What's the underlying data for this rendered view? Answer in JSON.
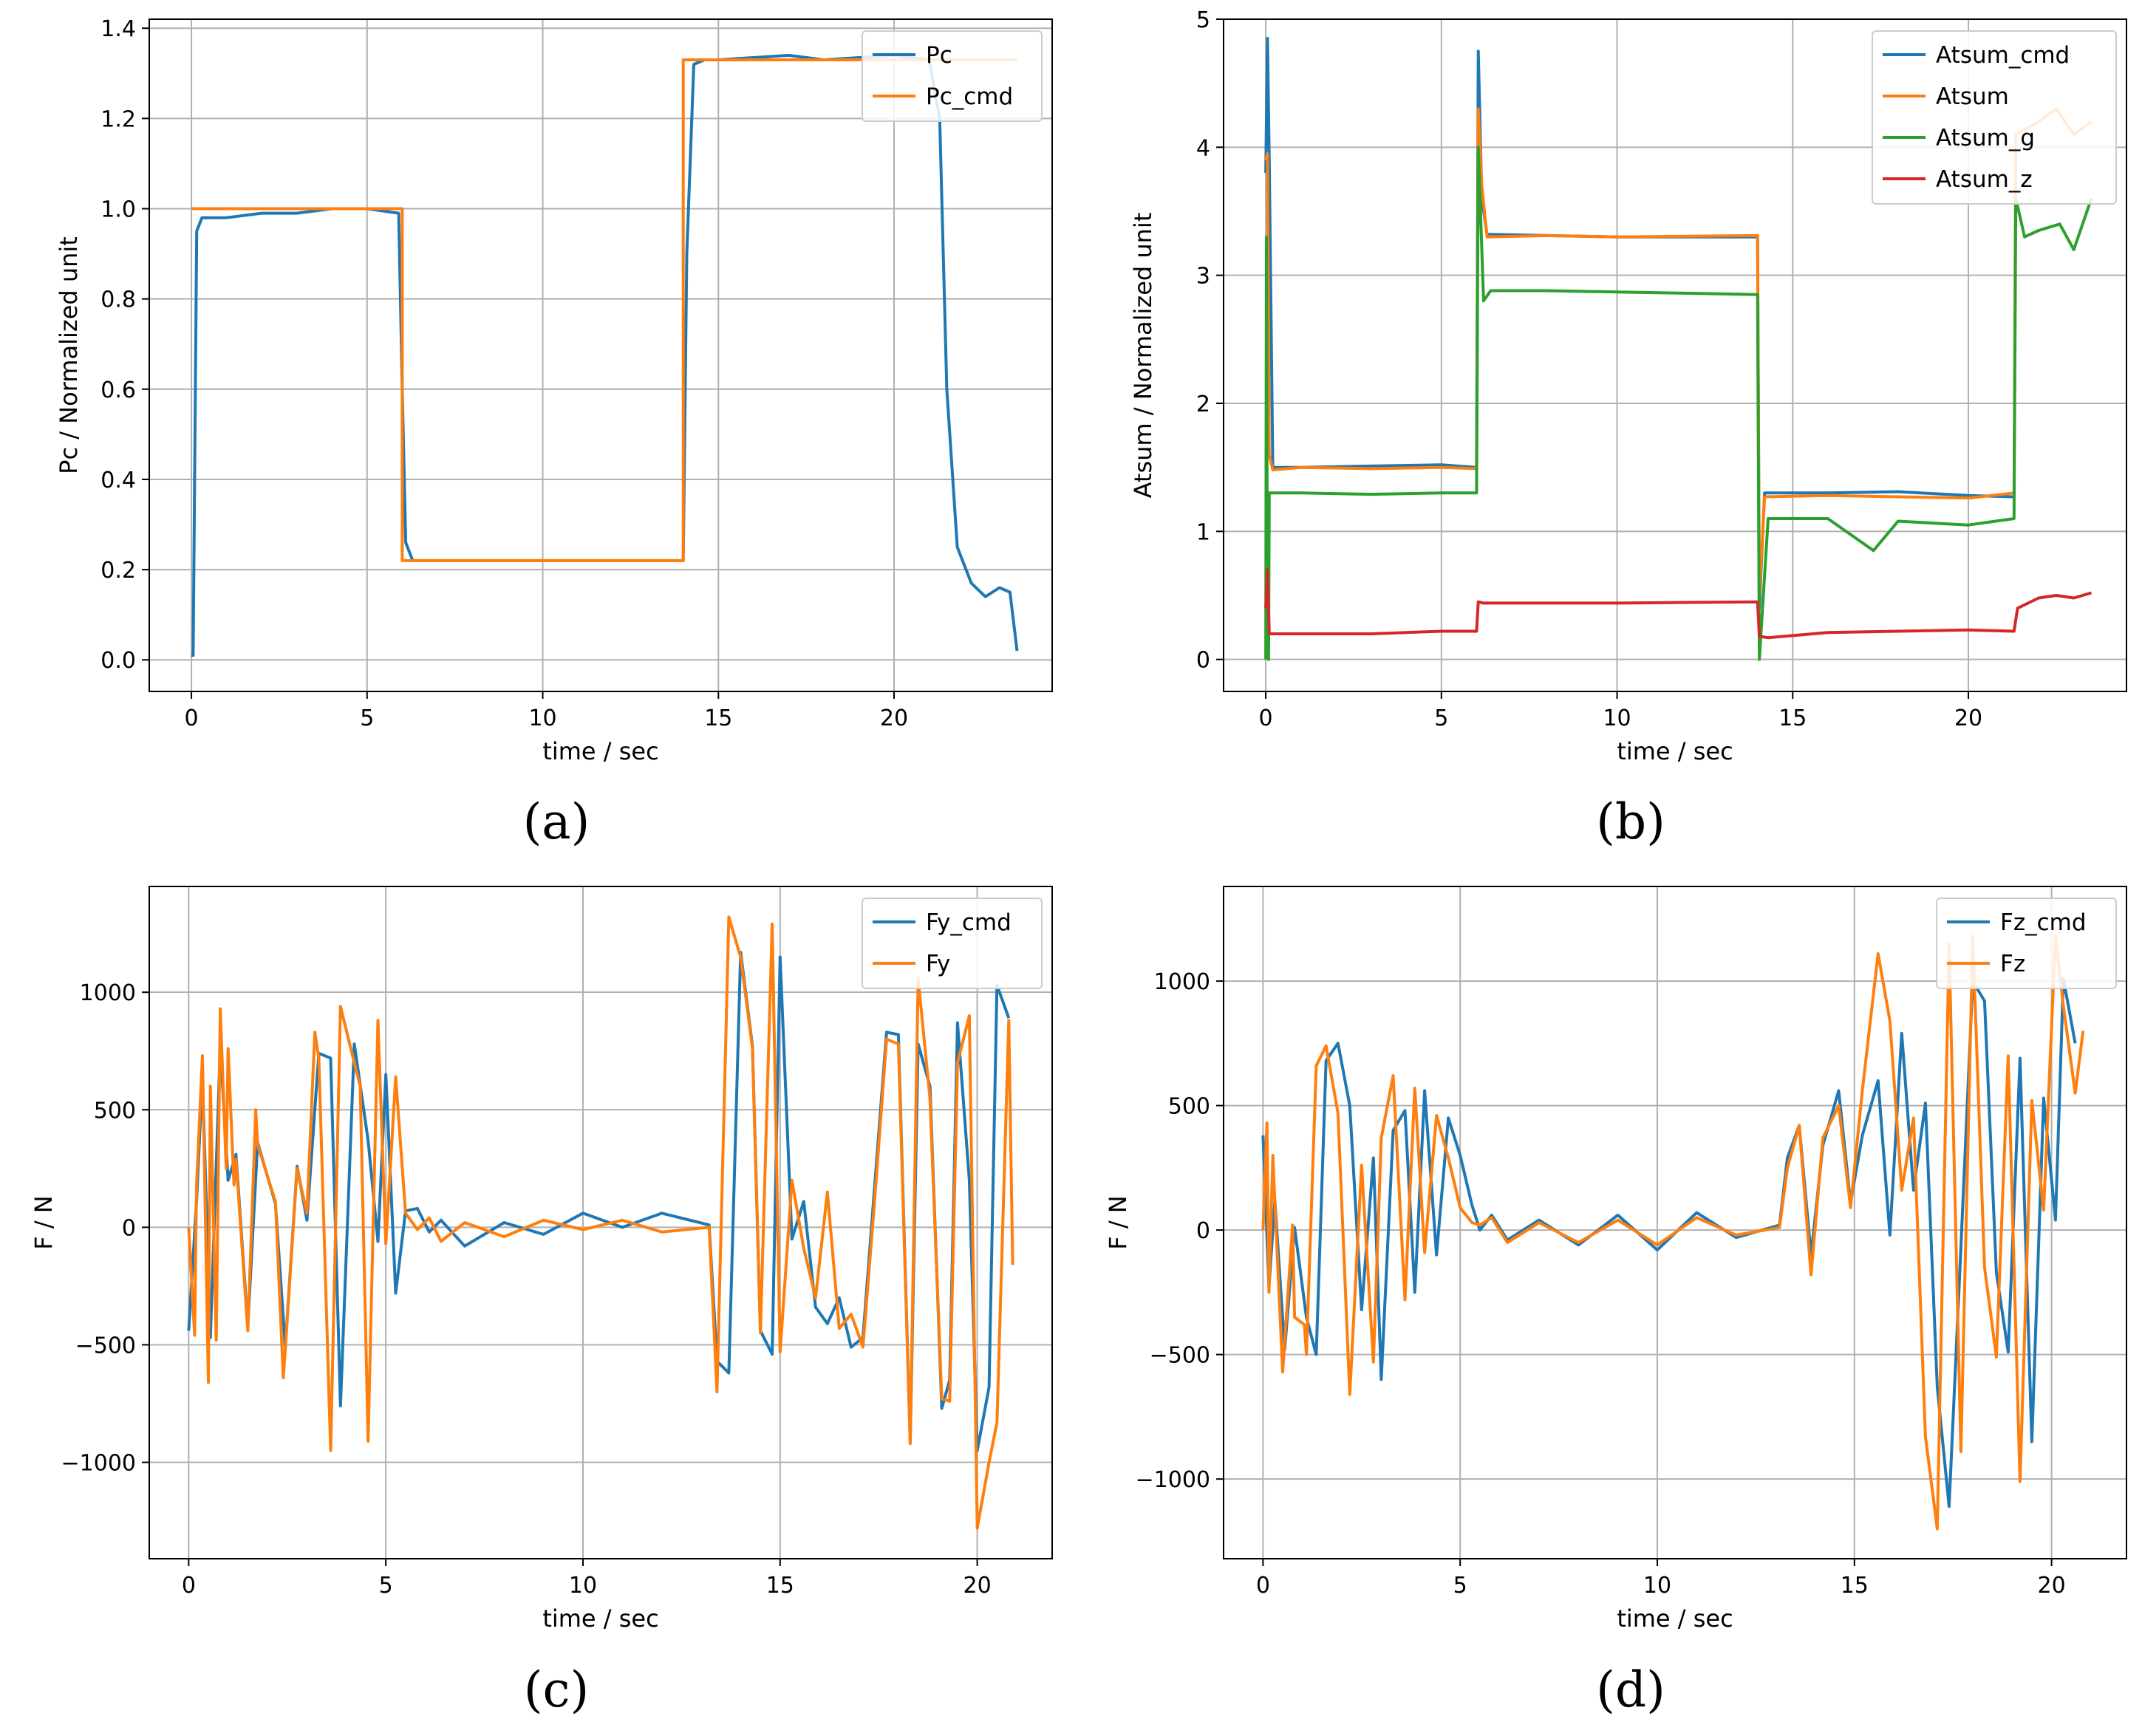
{
  "chart_data": [
    {
      "type": "line",
      "caption": "(a)",
      "xlabel": "time / sec",
      "ylabel": "Pc / Normalized unit",
      "xlim": [
        -1.2,
        24.5
      ],
      "ylim": [
        -0.07,
        1.42
      ],
      "xticks": [
        0,
        5,
        10,
        15,
        20
      ],
      "yticks": [
        0.0,
        0.2,
        0.4,
        0.6,
        0.8,
        1.0,
        1.2,
        1.4
      ],
      "ytick_labels": [
        "0.0",
        "0.2",
        "0.4",
        "0.6",
        "0.8",
        "1.0",
        "1.2",
        "1.4"
      ],
      "legend_position": "top-right",
      "series": [
        {
          "name": "Pc",
          "color": "#1f77b4",
          "x": [
            0,
            0.05,
            0.15,
            0.3,
            1,
            2,
            3,
            4,
            5,
            5.9,
            6.0,
            6.1,
            6.3,
            6.6,
            8,
            10,
            12,
            14.0,
            14.1,
            14.3,
            14.6,
            15,
            17,
            18,
            20,
            21,
            21.3,
            21.5,
            21.8,
            22.2,
            22.6,
            23.0,
            23.3,
            23.5
          ],
          "y": [
            0.01,
            0.01,
            0.95,
            0.98,
            0.98,
            0.99,
            0.99,
            1.0,
            1.0,
            0.99,
            0.6,
            0.26,
            0.22,
            0.22,
            0.22,
            0.22,
            0.22,
            0.22,
            0.9,
            1.32,
            1.33,
            1.33,
            1.34,
            1.33,
            1.34,
            1.33,
            1.2,
            0.6,
            0.25,
            0.17,
            0.14,
            0.16,
            0.15,
            0.02
          ]
        },
        {
          "name": "Pc_cmd",
          "color": "#ff7f0e",
          "x": [
            0,
            6.0,
            6.0,
            14.0,
            14.0,
            23.5
          ],
          "y": [
            1.0,
            1.0,
            0.22,
            0.22,
            1.33,
            1.33
          ]
        }
      ]
    },
    {
      "type": "line",
      "caption": "(b)",
      "xlabel": "time / sec",
      "ylabel": "Atsum / Normalized unit",
      "xlim": [
        -1.2,
        24.5
      ],
      "ylim": [
        -0.25,
        5.0
      ],
      "xticks": [
        0,
        5,
        10,
        15,
        20
      ],
      "yticks": [
        0,
        1,
        2,
        3,
        4,
        5
      ],
      "ytick_labels": [
        "0",
        "1",
        "2",
        "3",
        "4",
        "5"
      ],
      "legend_position": "top-right",
      "series": [
        {
          "name": "Atsum_cmd",
          "color": "#1f77b4",
          "x": [
            0,
            0.05,
            0.1,
            0.2,
            1,
            3,
            5,
            6.0,
            6.05,
            6.15,
            6.3,
            8,
            10,
            14.0,
            14.05,
            14.2,
            16,
            18,
            20,
            21.3
          ],
          "y": [
            3.8,
            4.85,
            3.9,
            1.5,
            1.5,
            1.51,
            1.52,
            1.5,
            4.75,
            3.6,
            3.32,
            3.31,
            3.3,
            3.3,
            0.4,
            1.3,
            1.3,
            1.31,
            1.28,
            1.27
          ]
        },
        {
          "name": "Atsum",
          "color": "#ff7f0e",
          "x": [
            0,
            0.05,
            0.1,
            0.2,
            1,
            3,
            5,
            6.0,
            6.05,
            6.15,
            6.3,
            8,
            10,
            14.0,
            14.05,
            14.2,
            16,
            18,
            20,
            21.3,
            21.35,
            22,
            22.5,
            23,
            23.5
          ],
          "y": [
            3.9,
            3.95,
            1.6,
            1.48,
            1.5,
            1.49,
            1.5,
            1.49,
            4.3,
            3.7,
            3.3,
            3.31,
            3.3,
            3.31,
            0.5,
            1.27,
            1.28,
            1.27,
            1.26,
            1.3,
            4.1,
            4.2,
            4.3,
            4.1,
            4.2
          ]
        },
        {
          "name": "Atsum_g",
          "color": "#2ca02c",
          "x": [
            0,
            0.02,
            0.05,
            0.08,
            0.1,
            0.3,
            1,
            3,
            5,
            6.0,
            6.05,
            6.2,
            6.4,
            8,
            10,
            14.0,
            14.05,
            14.3,
            16,
            17.3,
            18,
            20,
            21.3,
            21.35,
            21.6,
            22,
            22.6,
            23,
            23.5
          ],
          "y": [
            0,
            3.3,
            0.1,
            0,
            1.3,
            1.3,
            1.3,
            1.29,
            1.3,
            1.3,
            4.0,
            2.8,
            2.88,
            2.88,
            2.87,
            2.85,
            0,
            1.1,
            1.1,
            0.85,
            1.08,
            1.05,
            1.1,
            3.6,
            3.3,
            3.35,
            3.4,
            3.2,
            3.6
          ]
        },
        {
          "name": "Atsum_z",
          "color": "#d62728",
          "x": [
            0,
            0.05,
            0.1,
            0.2,
            1,
            3,
            5,
            6.0,
            6.05,
            6.2,
            8,
            10,
            14.0,
            14.05,
            14.3,
            16,
            18,
            20,
            21.3,
            21.4,
            22,
            22.5,
            23,
            23.5
          ],
          "y": [
            0.4,
            0.7,
            0.2,
            0.2,
            0.2,
            0.2,
            0.22,
            0.22,
            0.45,
            0.44,
            0.44,
            0.44,
            0.45,
            0.18,
            0.17,
            0.21,
            0.22,
            0.23,
            0.22,
            0.4,
            0.48,
            0.5,
            0.48,
            0.52
          ]
        }
      ]
    },
    {
      "type": "line",
      "caption": "(c)",
      "xlabel": "time / sec",
      "ylabel": "F / N",
      "xlim": [
        -1.0,
        21.9
      ],
      "ylim": [
        -1410,
        1450
      ],
      "xticks": [
        0,
        5,
        10,
        15,
        20
      ],
      "yticks": [
        -1000,
        -500,
        0,
        500,
        1000
      ],
      "ytick_labels": [
        "−1000",
        "−500",
        "0",
        "500",
        "1000"
      ],
      "legend_position": "top-right",
      "series": [
        {
          "name": "Fy_cmd",
          "color": "#1f77b4",
          "x": [
            0,
            0.2,
            0.35,
            0.55,
            0.8,
            1.0,
            1.2,
            1.5,
            1.75,
            2.2,
            2.45,
            2.75,
            3.0,
            3.3,
            3.6,
            3.85,
            4.2,
            4.55,
            4.8,
            5.0,
            5.25,
            5.5,
            5.8,
            6.1,
            6.4,
            7,
            8,
            9,
            10,
            11,
            12,
            13.2,
            13.4,
            13.7,
            14.0,
            14.3,
            14.5,
            14.8,
            15.0,
            15.3,
            15.6,
            15.9,
            16.2,
            16.5,
            16.8,
            17.1,
            17.4,
            17.7,
            18.0,
            18.3,
            18.5,
            18.8,
            19.1,
            19.3,
            19.5,
            19.8,
            20.0,
            20.3,
            20.5,
            20.8
          ],
          "y": [
            -440,
            110,
            640,
            -470,
            770,
            200,
            310,
            -420,
            360,
            100,
            -510,
            260,
            30,
            740,
            720,
            -760,
            780,
            370,
            -60,
            650,
            -280,
            70,
            80,
            -20,
            30,
            -80,
            20,
            -30,
            60,
            0,
            60,
            10,
            -570,
            -620,
            1170,
            770,
            -440,
            -540,
            1150,
            -50,
            110,
            -340,
            -410,
            -300,
            -510,
            -470,
            180,
            830,
            820,
            -910,
            780,
            600,
            -770,
            -650,
            870,
            200,
            -950,
            -680,
            1030,
            890
          ]
        },
        {
          "name": "Fy",
          "color": "#ff7f0e",
          "x": [
            0,
            0.15,
            0.2,
            0.35,
            0.5,
            0.55,
            0.7,
            0.8,
            0.95,
            1.0,
            1.15,
            1.2,
            1.5,
            1.7,
            1.75,
            2.2,
            2.4,
            2.45,
            2.75,
            3.0,
            3.2,
            3.3,
            3.6,
            3.85,
            4.2,
            4.35,
            4.55,
            4.8,
            5.0,
            5.25,
            5.5,
            5.8,
            6.1,
            6.4,
            7,
            8,
            9,
            10,
            11,
            12,
            13.2,
            13.4,
            13.7,
            14.0,
            14.3,
            14.5,
            14.8,
            15.0,
            15.3,
            15.6,
            15.9,
            16.2,
            16.5,
            16.8,
            17.1,
            17.4,
            17.7,
            18.0,
            18.3,
            18.5,
            18.8,
            19.1,
            19.3,
            19.5,
            19.8,
            20.0,
            20.3,
            20.5,
            20.8,
            20.9
          ],
          "y": [
            0,
            -460,
            180,
            730,
            -660,
            600,
            -480,
            930,
            250,
            760,
            180,
            290,
            -440,
            500,
            350,
            110,
            -640,
            -520,
            250,
            60,
            830,
            720,
            -950,
            940,
            700,
            600,
            -910,
            880,
            -70,
            640,
            60,
            -10,
            40,
            -60,
            20,
            -40,
            30,
            -10,
            30,
            -20,
            0,
            -700,
            1320,
            1150,
            760,
            -450,
            1290,
            -530,
            200,
            -90,
            -300,
            150,
            -430,
            -370,
            -510,
            120,
            800,
            780,
            -920,
            1060,
            550,
            -730,
            -740,
            700,
            900,
            -1280,
            -1000,
            -830,
            880,
            -160
          ]
        }
      ]
    },
    {
      "type": "line",
      "caption": "(d)",
      "xlabel": "time / sec",
      "ylabel": "F / N",
      "xlim": [
        -1.0,
        21.9
      ],
      "ylim": [
        -1320,
        1380
      ],
      "xticks": [
        0,
        5,
        10,
        15,
        20
      ],
      "yticks": [
        -1000,
        -500,
        0,
        500,
        1000
      ],
      "ytick_labels": [
        "−1000",
        "−500",
        "0",
        "500",
        "1000"
      ],
      "legend_position": "top-right",
      "series": [
        {
          "name": "Fz_cmd",
          "color": "#1f77b4",
          "x": [
            0,
            0.15,
            0.3,
            0.55,
            0.8,
            1.1,
            1.35,
            1.6,
            1.9,
            2.2,
            2.5,
            2.8,
            3.0,
            3.3,
            3.6,
            3.85,
            4.1,
            4.4,
            4.7,
            5.0,
            5.3,
            5.5,
            5.8,
            6.2,
            7,
            8,
            9,
            10,
            11,
            12,
            13.1,
            13.3,
            13.6,
            13.9,
            14.2,
            14.6,
            14.9,
            15.2,
            15.6,
            15.9,
            16.2,
            16.5,
            16.8,
            17.1,
            17.4,
            17.7,
            18.0,
            18.3,
            18.6,
            18.9,
            19.2,
            19.5,
            19.8,
            20.1,
            20.3,
            20.6
          ],
          "y": [
            380,
            -230,
            120,
            -480,
            10,
            -350,
            -500,
            680,
            750,
            500,
            -320,
            290,
            -600,
            400,
            480,
            -250,
            560,
            -100,
            450,
            300,
            100,
            0,
            60,
            -40,
            40,
            -60,
            60,
            -80,
            70,
            -30,
            20,
            290,
            420,
            -100,
            340,
            560,
            110,
            380,
            600,
            -20,
            790,
            160,
            510,
            -630,
            -1110,
            -70,
            1000,
            920,
            -170,
            -490,
            690,
            -850,
            530,
            40,
            1010,
            750
          ]
        },
        {
          "name": "Fz",
          "color": "#ff7f0e",
          "x": [
            0,
            0.1,
            0.15,
            0.25,
            0.3,
            0.5,
            0.55,
            0.75,
            0.8,
            1.05,
            1.1,
            1.35,
            1.6,
            1.9,
            2.2,
            2.5,
            2.8,
            3.0,
            3.3,
            3.6,
            3.85,
            4.1,
            4.4,
            4.7,
            5.0,
            5.3,
            5.5,
            5.8,
            6.2,
            7,
            8,
            9,
            10,
            11,
            12,
            13.1,
            13.3,
            13.6,
            13.9,
            14.2,
            14.6,
            14.9,
            15.2,
            15.6,
            15.9,
            16.2,
            16.5,
            16.8,
            17.1,
            17.4,
            17.7,
            18.0,
            18.3,
            18.6,
            18.9,
            19.2,
            19.5,
            19.8,
            20.1,
            20.3,
            20.6,
            20.8
          ],
          "y": [
            0,
            430,
            -250,
            300,
            110,
            -570,
            -450,
            20,
            -350,
            -380,
            -500,
            660,
            740,
            470,
            -660,
            260,
            -530,
            370,
            620,
            -280,
            570,
            -90,
            460,
            290,
            90,
            30,
            20,
            50,
            -50,
            30,
            -50,
            40,
            -60,
            50,
            -20,
            10,
            250,
            420,
            -180,
            370,
            500,
            90,
            560,
            1110,
            840,
            160,
            450,
            -830,
            -1200,
            1150,
            -890,
            1180,
            -150,
            -510,
            700,
            -1010,
            520,
            80,
            1180,
            900,
            550,
            800
          ]
        }
      ]
    }
  ]
}
